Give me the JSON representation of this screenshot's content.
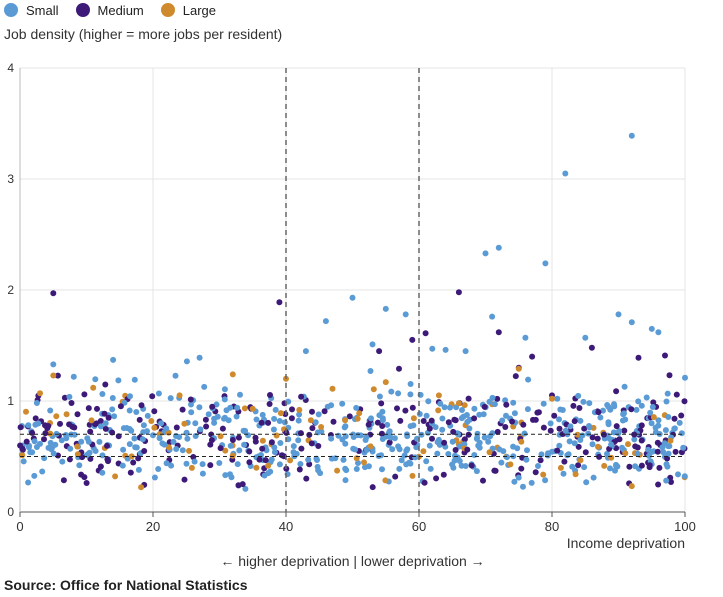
{
  "legend": [
    {
      "label": "Small",
      "color": "#5b9bd5"
    },
    {
      "label": "Medium",
      "color": "#3d1a78"
    },
    {
      "label": "Large",
      "color": "#d08a2e"
    }
  ],
  "chart_data": {
    "type": "scatter",
    "title": "",
    "ylabel": "Job density (higher = more jobs per resident)",
    "xlabel": "Income deprivation",
    "xlim": [
      0,
      100
    ],
    "ylim": [
      0,
      4
    ],
    "xticks": [
      "0",
      "20",
      "40",
      "60",
      "80",
      "100"
    ],
    "yticks": [
      "0",
      "1",
      "2",
      "3",
      "4"
    ],
    "grid": true,
    "legend_position": "top-left",
    "vertical_reference_lines": [
      40,
      60
    ],
    "horizontal_reference_lines": [
      0.5,
      0.7
    ],
    "series": [
      {
        "name": "Small",
        "color": "#5b9bd5",
        "points": [
          [
            5,
            1.33
          ],
          [
            14,
            1.37
          ],
          [
            27,
            1.39
          ],
          [
            43,
            1.45
          ],
          [
            46,
            1.72
          ],
          [
            50,
            1.93
          ],
          [
            53,
            1.51
          ],
          [
            55,
            1.83
          ],
          [
            58,
            1.78
          ],
          [
            62,
            1.47
          ],
          [
            64,
            1.46
          ],
          [
            67,
            1.45
          ],
          [
            70,
            2.33
          ],
          [
            71,
            1.76
          ],
          [
            72,
            2.38
          ],
          [
            76,
            1.57
          ],
          [
            79,
            2.24
          ],
          [
            82,
            3.05
          ],
          [
            85,
            1.57
          ],
          [
            90,
            1.78
          ],
          [
            92,
            3.39
          ],
          [
            92,
            1.71
          ],
          [
            95,
            1.65
          ],
          [
            96,
            1.62
          ],
          [
            100,
            1.21
          ]
        ]
      },
      {
        "name": "Medium",
        "color": "#3d1a78",
        "points": [
          [
            5,
            1.97
          ],
          [
            39,
            1.89
          ],
          [
            54,
            1.45
          ],
          [
            57,
            1.29
          ],
          [
            59,
            1.55
          ],
          [
            61,
            1.61
          ],
          [
            66,
            1.98
          ],
          [
            72,
            1.62
          ],
          [
            75,
            1.3
          ],
          [
            77,
            1.4
          ],
          [
            80,
            1.05
          ],
          [
            86,
            1.48
          ],
          [
            93,
            1.39
          ],
          [
            97,
            1.41
          ]
        ]
      },
      {
        "name": "Large",
        "color": "#d08a2e",
        "points": [
          [
            3,
            1.07
          ],
          [
            5,
            1.23
          ],
          [
            7,
            0.88
          ],
          [
            11,
            1.12
          ],
          [
            24,
            1.05
          ],
          [
            32,
            1.24
          ],
          [
            35,
            0.93
          ],
          [
            40,
            1.2
          ],
          [
            42,
            0.92
          ],
          [
            47,
            1.11
          ],
          [
            51,
            0.89
          ],
          [
            55,
            1.17
          ],
          [
            63,
            1.05
          ],
          [
            66,
            0.98
          ],
          [
            75,
            1.29
          ],
          [
            80,
            1.02
          ]
        ]
      }
    ]
  },
  "footnote": "← higher deprivation | lower deprivation →",
  "source": "Source: Office for National Statistics"
}
